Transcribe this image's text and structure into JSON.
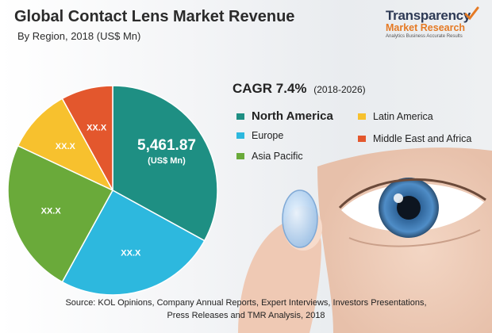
{
  "header": {
    "title": "Global Contact Lens Market Revenue",
    "subtitle": "By Region, 2018 (US$ Mn)"
  },
  "logo": {
    "line1": "Transparency",
    "line2": "Market Research",
    "tagline": "Analytics Business Accurate Results"
  },
  "cagr": {
    "label": "CAGR 7.4%",
    "range": "(2018-2026)"
  },
  "legend": {
    "items": [
      {
        "label": "North America",
        "color": "#1e8f83",
        "emphasis": true
      },
      {
        "label": "Latin America",
        "color": "#f7c12e",
        "emphasis": false
      },
      {
        "label": "Europe",
        "color": "#2db8de",
        "emphasis": false
      },
      {
        "label": "Middle East and Africa",
        "color": "#e3572d",
        "emphasis": false
      },
      {
        "label": "Asia Pacific",
        "color": "#6aaa3a",
        "emphasis": false
      }
    ]
  },
  "source": {
    "line1": "Source: KOL Opinions, Company Annual Reports, Expert Interviews, Investors Presentations,",
    "line2": "Press Releases and TMR Analysis, 2018"
  },
  "chart_data": {
    "type": "pie",
    "title": "Global Contact Lens Market Revenue",
    "subtitle": "By Region, 2018 (US$ Mn)",
    "total": "5,461.87",
    "total_unit": "(US$ Mn)",
    "legend_position": "right",
    "slices": [
      {
        "name": "North America",
        "share": 0.33,
        "label": "",
        "color": "#1e8f83"
      },
      {
        "name": "Europe",
        "share": 0.25,
        "label": "XX.X",
        "color": "#2db8de"
      },
      {
        "name": "Asia Pacific",
        "share": 0.24,
        "label": "XX.X",
        "color": "#6aaa3a"
      },
      {
        "name": "Latin America",
        "share": 0.1,
        "label": "XX.X",
        "color": "#f7c12e"
      },
      {
        "name": "Middle East and Africa",
        "share": 0.08,
        "label": "XX.X",
        "color": "#e3572d"
      }
    ]
  }
}
